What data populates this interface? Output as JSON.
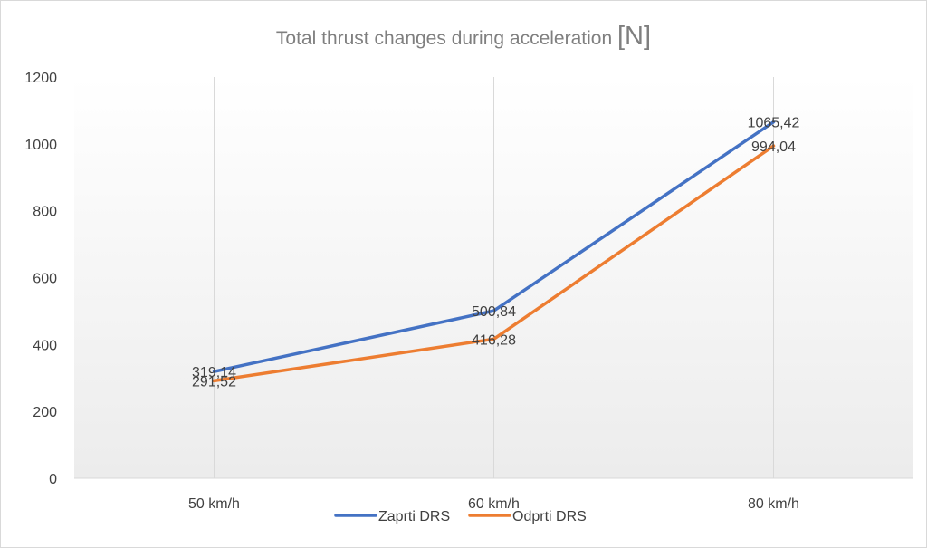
{
  "chart_data": {
    "type": "line",
    "title": "Total thrust changes during acceleration",
    "title_unit": "[N]",
    "xlabel": "",
    "ylabel": "",
    "categories": [
      "50 km/h",
      "60 km/h",
      "80 km/h"
    ],
    "series": [
      {
        "name": "Zaprti DRS",
        "color": "#4472c4",
        "values": [
          319.14,
          500.84,
          1065.42
        ],
        "labels": [
          "319,14",
          "500,84",
          "1065,42"
        ]
      },
      {
        "name": "Odprti DRS",
        "color": "#ed7d31",
        "values": [
          291.52,
          416.28,
          994.04
        ],
        "labels": [
          "291,52",
          "416,28",
          "994,04"
        ]
      }
    ],
    "ylim": [
      0,
      1200
    ],
    "yticks": [
      0,
      200,
      400,
      600,
      800,
      1000,
      1200
    ],
    "grid": "vertical",
    "legend_position": "bottom",
    "plot_background": "gradient light gray to white"
  }
}
